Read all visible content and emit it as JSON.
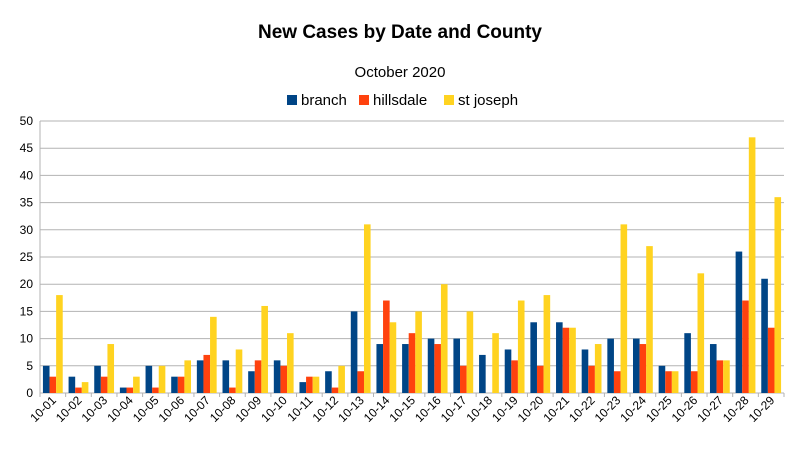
{
  "chart_data": {
    "type": "bar",
    "title": "New Cases by Date and County",
    "subtitle": "October 2020",
    "xlabel": "",
    "ylabel": "",
    "ylim": [
      0,
      50
    ],
    "yticks": [
      0,
      5,
      10,
      15,
      20,
      25,
      30,
      35,
      40,
      45,
      50
    ],
    "grid": true,
    "legend_position": "top-center",
    "categories": [
      "10-01",
      "10-02",
      "10-03",
      "10-04",
      "10-05",
      "10-06",
      "10-07",
      "10-08",
      "10-09",
      "10-10",
      "10-11",
      "10-12",
      "10-13",
      "10-14",
      "10-15",
      "10-16",
      "10-17",
      "10-18",
      "10-19",
      "10-20",
      "10-21",
      "10-22",
      "10-23",
      "10-24",
      "10-25",
      "10-26",
      "10-27",
      "10-28",
      "10-29"
    ],
    "series": [
      {
        "name": "branch",
        "color": "#004586",
        "values": [
          5,
          3,
          5,
          1,
          5,
          3,
          6,
          6,
          4,
          6,
          2,
          4,
          15,
          9,
          9,
          10,
          10,
          7,
          8,
          13,
          13,
          8,
          10,
          10,
          5,
          11,
          9,
          26,
          21
        ]
      },
      {
        "name": "hillsdale",
        "color": "#ff420e",
        "values": [
          3,
          1,
          3,
          1,
          1,
          3,
          7,
          1,
          6,
          5,
          3,
          1,
          4,
          17,
          11,
          9,
          5,
          0,
          6,
          5,
          12,
          5,
          4,
          9,
          4,
          4,
          6,
          17,
          12
        ]
      },
      {
        "name": "st joseph",
        "color": "#ffd320",
        "values": [
          18,
          2,
          9,
          3,
          5,
          6,
          14,
          8,
          16,
          11,
          3,
          5,
          31,
          13,
          15,
          20,
          15,
          11,
          17,
          18,
          12,
          9,
          31,
          27,
          4,
          22,
          6,
          47,
          36
        ]
      }
    ]
  }
}
